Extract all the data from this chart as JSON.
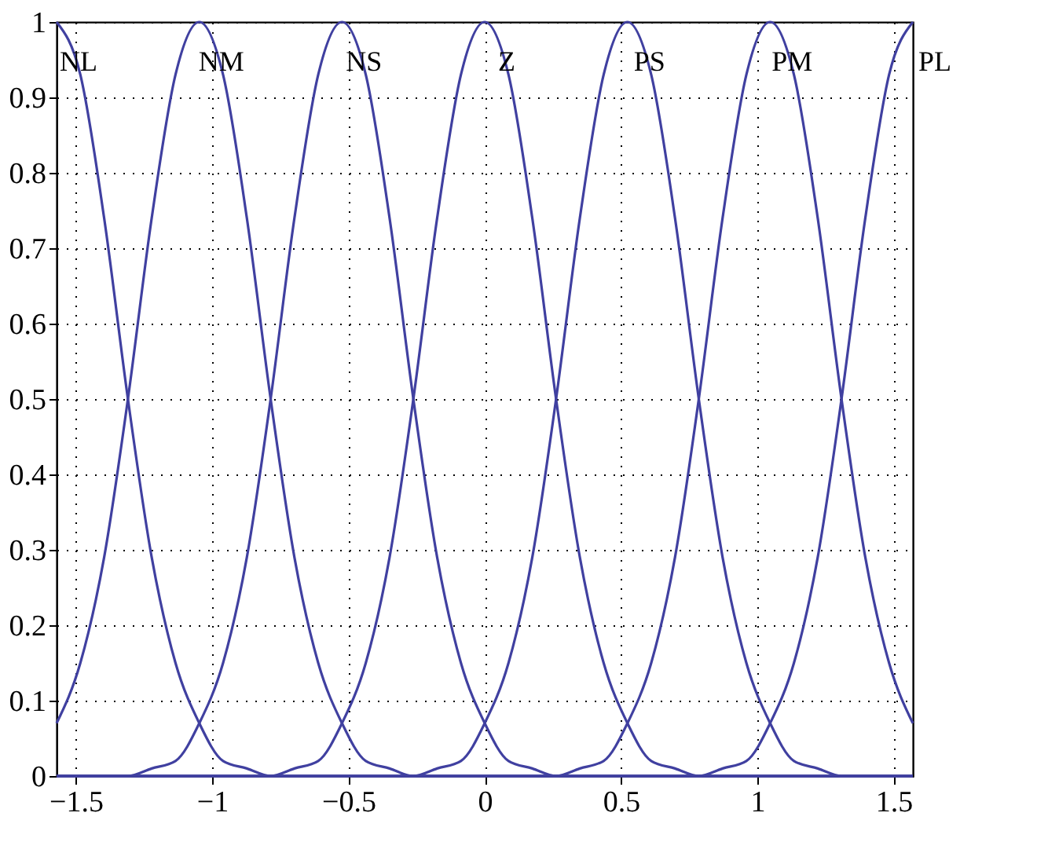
{
  "chart_data": {
    "type": "line",
    "x": [
      -1.5708,
      -1.4835,
      -1.3963,
      -1.309,
      -1.2217,
      -1.1345,
      -1.0472,
      -0.9599,
      -0.8727,
      -0.7854,
      -0.6981,
      -0.6109,
      -0.5236,
      -0.4363,
      -0.3491,
      -0.2618,
      -0.1745,
      -0.0873,
      0,
      0.0873,
      0.1745,
      0.2618,
      0.3491,
      0.4363,
      0.5236,
      0.6109,
      0.6981,
      0.7854,
      0.8727,
      0.9599,
      1.0472,
      1.1345,
      1.2217,
      1.309,
      1.3963,
      1.4835,
      1.5708
    ],
    "series": [
      {
        "name": "NL",
        "color": "#4040a0",
        "values": [
          1,
          0.93,
          0.74,
          0.5,
          0.29,
          0.15,
          0.07,
          0.02,
          0.01,
          0,
          0,
          0,
          0,
          0,
          0,
          0,
          0,
          0,
          0,
          0,
          0,
          0,
          0,
          0,
          0,
          0,
          0,
          0,
          0,
          0,
          0,
          0,
          0,
          0,
          0,
          0,
          0
        ]
      },
      {
        "name": "NM",
        "color": "#4040a0",
        "values": [
          0.07,
          0.15,
          0.29,
          0.5,
          0.74,
          0.93,
          1,
          0.93,
          0.74,
          0.5,
          0.29,
          0.15,
          0.07,
          0.02,
          0.01,
          0,
          0,
          0,
          0,
          0,
          0,
          0,
          0,
          0,
          0,
          0,
          0,
          0,
          0,
          0,
          0,
          0,
          0,
          0,
          0,
          0,
          0
        ]
      },
      {
        "name": "NS",
        "color": "#4040a0",
        "values": [
          0,
          0,
          0,
          0,
          0.01,
          0.02,
          0.07,
          0.15,
          0.29,
          0.5,
          0.74,
          0.93,
          1,
          0.93,
          0.74,
          0.5,
          0.29,
          0.15,
          0.07,
          0.02,
          0.01,
          0,
          0,
          0,
          0,
          0,
          0,
          0,
          0,
          0,
          0,
          0,
          0,
          0,
          0,
          0,
          0
        ]
      },
      {
        "name": "Z",
        "color": "#4040a0",
        "values": [
          0,
          0,
          0,
          0,
          0,
          0,
          0,
          0,
          0,
          0,
          0.01,
          0.02,
          0.07,
          0.15,
          0.29,
          0.5,
          0.74,
          0.93,
          1,
          0.93,
          0.74,
          0.5,
          0.29,
          0.15,
          0.07,
          0.02,
          0.01,
          0,
          0,
          0,
          0,
          0,
          0,
          0,
          0,
          0,
          0
        ]
      },
      {
        "name": "PS",
        "color": "#4040a0",
        "values": [
          0,
          0,
          0,
          0,
          0,
          0,
          0,
          0,
          0,
          0,
          0,
          0,
          0,
          0,
          0,
          0,
          0.01,
          0.02,
          0.07,
          0.15,
          0.29,
          0.5,
          0.74,
          0.93,
          1,
          0.93,
          0.74,
          0.5,
          0.29,
          0.15,
          0.07,
          0.02,
          0.01,
          0,
          0,
          0,
          0
        ]
      },
      {
        "name": "PM",
        "color": "#4040a0",
        "values": [
          0,
          0,
          0,
          0,
          0,
          0,
          0,
          0,
          0,
          0,
          0,
          0,
          0,
          0,
          0,
          0,
          0,
          0,
          0,
          0,
          0,
          0,
          0.01,
          0.02,
          0.07,
          0.15,
          0.29,
          0.5,
          0.74,
          0.93,
          1,
          0.93,
          0.74,
          0.5,
          0.29,
          0.15,
          0.07
        ]
      },
      {
        "name": "PL",
        "color": "#4040a0",
        "values": [
          0,
          0,
          0,
          0,
          0,
          0,
          0,
          0,
          0,
          0,
          0,
          0,
          0,
          0,
          0,
          0,
          0,
          0,
          0,
          0,
          0,
          0,
          0,
          0,
          0,
          0,
          0,
          0,
          0.01,
          0.02,
          0.07,
          0.15,
          0.29,
          0.5,
          0.74,
          0.93,
          1
        ]
      }
    ],
    "xlim": [
      -1.5708,
      1.5708
    ],
    "xticks": [
      {
        "value": -1.5,
        "label": "−1.5"
      },
      {
        "value": -1,
        "label": "−1"
      },
      {
        "value": -0.5,
        "label": "−0.5"
      },
      0,
      0.5,
      1,
      1.5
    ],
    "ylim": [
      0,
      1
    ],
    "yticks": [
      0,
      0.1,
      0.2,
      0.3,
      0.4,
      0.5,
      0.6,
      0.7,
      0.8,
      0.9,
      1
    ],
    "grid": true,
    "marker": "none",
    "line_style": "solid"
  }
}
